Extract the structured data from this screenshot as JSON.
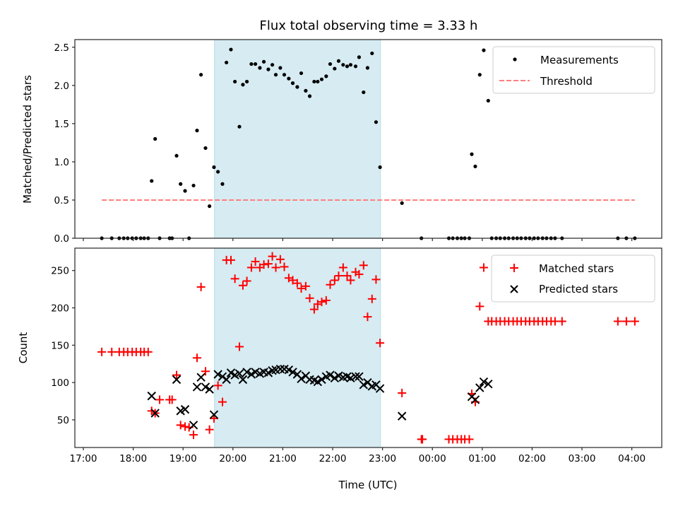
{
  "chart_data": [
    {
      "type": "scatter",
      "title": "Flux total observing time = 3.33 h",
      "xlabel": "",
      "ylabel": "Matched/Predicted stars",
      "ylim": [
        0,
        2.6
      ],
      "xlim_hours": [
        16.83,
        28.6
      ],
      "yticks": [
        "0.0",
        "0.5",
        "1.0",
        "1.5",
        "2.0",
        "2.5"
      ],
      "ytick_values": [
        0,
        0.5,
        1.0,
        1.5,
        2.0,
        2.5
      ],
      "grid": false,
      "legend_position": "top-right",
      "shaded_interval_hours": [
        19.63,
        22.96
      ],
      "shade_color": "#add8e6",
      "series": [
        {
          "name": "Measurements",
          "color": "#000000",
          "marker": "dot",
          "x_hours": [
            17.37,
            17.57,
            17.72,
            17.81,
            17.89,
            17.98,
            18.06,
            18.15,
            18.22,
            18.3,
            18.37,
            18.44,
            18.53,
            18.73,
            18.78,
            18.87,
            18.95,
            19.04,
            19.12,
            19.21,
            19.28,
            19.36,
            19.45,
            19.53,
            19.62,
            19.7,
            19.79,
            19.87,
            19.96,
            20.04,
            20.13,
            20.2,
            20.28,
            20.37,
            20.45,
            20.54,
            20.62,
            20.71,
            20.79,
            20.86,
            20.95,
            21.03,
            21.12,
            21.2,
            21.29,
            21.37,
            21.46,
            21.54,
            21.63,
            21.7,
            21.78,
            21.87,
            21.95,
            22.04,
            22.12,
            22.21,
            22.29,
            22.36,
            22.46,
            22.53,
            22.62,
            22.7,
            22.79,
            22.87,
            22.95,
            23.39,
            23.78,
            24.33,
            24.41,
            24.5,
            24.58,
            24.65,
            24.74,
            24.79,
            24.86,
            24.95,
            25.03,
            25.12,
            25.19,
            25.28,
            25.36,
            25.45,
            25.53,
            25.62,
            25.7,
            25.78,
            25.87,
            25.95,
            26.04,
            26.12,
            26.21,
            26.29,
            26.38,
            26.46,
            26.6,
            27.72,
            27.89,
            28.06
          ],
          "values": [
            0,
            0,
            0,
            0,
            0,
            0,
            0,
            0,
            0,
            0,
            0.75,
            1.3,
            0,
            0,
            0,
            1.08,
            0.71,
            0.62,
            0,
            0.69,
            1.41,
            2.14,
            1.18,
            0.42,
            0.93,
            0.87,
            0.71,
            2.3,
            2.47,
            2.05,
            1.46,
            2.01,
            2.05,
            2.28,
            2.28,
            2.23,
            2.31,
            2.21,
            2.27,
            2.14,
            2.23,
            2.14,
            2.09,
            2.03,
            1.98,
            2.16,
            1.93,
            1.86,
            2.05,
            2.05,
            2.08,
            2.12,
            2.28,
            2.22,
            2.32,
            2.27,
            2.25,
            2.27,
            2.25,
            2.37,
            1.91,
            2.23,
            2.42,
            1.52,
            0.93,
            0.46,
            0,
            0,
            0,
            0,
            0,
            0,
            0,
            1.1,
            0.94,
            2.14,
            2.46,
            1.8,
            0,
            0,
            0,
            0,
            0,
            0,
            0,
            0,
            0,
            0,
            0,
            0,
            0,
            0,
            0,
            0,
            0,
            0,
            0,
            0
          ]
        },
        {
          "name": "Threshold",
          "color": "#ff7f7f",
          "style": "dashed",
          "x_hours": [
            17.37,
            28.06
          ],
          "values": [
            0.5,
            0.5
          ]
        }
      ]
    },
    {
      "type": "scatter",
      "title": "",
      "xlabel": "Time (UTC)",
      "ylabel": "Count",
      "ylim": [
        13,
        280
      ],
      "xlim_hours": [
        16.83,
        28.6
      ],
      "yticks": [
        "50",
        "100",
        "150",
        "200",
        "250"
      ],
      "ytick_values": [
        50,
        100,
        150,
        200,
        250
      ],
      "xticks": [
        "17:00",
        "18:00",
        "19:00",
        "20:00",
        "21:00",
        "22:00",
        "23:00",
        "00:00",
        "01:00",
        "02:00",
        "03:00",
        "04:00"
      ],
      "xtick_hours": [
        17,
        18,
        19,
        20,
        21,
        22,
        23,
        24,
        25,
        26,
        27,
        28
      ],
      "grid": false,
      "legend_position": "top-right",
      "shaded_interval_hours": [
        19.63,
        22.96
      ],
      "shade_color": "#add8e6",
      "series": [
        {
          "name": "Matched stars",
          "color": "#ff0000",
          "marker": "plus",
          "x_hours": [
            17.37,
            17.57,
            17.72,
            17.81,
            17.89,
            17.98,
            18.06,
            18.15,
            18.22,
            18.3,
            18.37,
            18.44,
            18.53,
            18.73,
            18.78,
            18.87,
            18.95,
            19.04,
            19.12,
            19.21,
            19.28,
            19.36,
            19.45,
            19.53,
            19.62,
            19.7,
            19.79,
            19.87,
            19.96,
            20.04,
            20.13,
            20.2,
            20.28,
            20.37,
            20.45,
            20.54,
            20.62,
            20.71,
            20.79,
            20.86,
            20.95,
            21.03,
            21.12,
            21.2,
            21.29,
            21.37,
            21.46,
            21.54,
            21.63,
            21.7,
            21.78,
            21.87,
            21.95,
            22.04,
            22.12,
            22.21,
            22.29,
            22.36,
            22.46,
            22.53,
            22.62,
            22.7,
            22.79,
            22.87,
            22.95,
            23.39,
            23.78,
            23.8,
            24.33,
            24.41,
            24.5,
            24.58,
            24.65,
            24.74,
            24.79,
            24.86,
            24.95,
            25.03,
            25.12,
            25.19,
            25.28,
            25.36,
            25.45,
            25.53,
            25.62,
            25.7,
            25.78,
            25.87,
            25.95,
            26.04,
            26.12,
            26.21,
            26.29,
            26.38,
            26.46,
            26.6,
            27.72,
            27.89,
            28.06
          ],
          "values": [
            141,
            141,
            141,
            141,
            141,
            141,
            141,
            141,
            141,
            141,
            62,
            59,
            77,
            77,
            77,
            110,
            43,
            41,
            40,
            30,
            133,
            228,
            115,
            37,
            52,
            96,
            74,
            264,
            264,
            239,
            148,
            230,
            236,
            254,
            262,
            254,
            258,
            259,
            269,
            254,
            265,
            255,
            240,
            237,
            233,
            226,
            229,
            213,
            198,
            205,
            208,
            210,
            231,
            237,
            243,
            254,
            243,
            237,
            248,
            245,
            257,
            188,
            212,
            238,
            153,
            86,
            24,
            24,
            24,
            24,
            24,
            24,
            24,
            24,
            85,
            74,
            202,
            254,
            182,
            182,
            182,
            182,
            182,
            182,
            182,
            182,
            182,
            182,
            182,
            182,
            182,
            182,
            182,
            182,
            182,
            182,
            182,
            182,
            182,
            182
          ]
        },
        {
          "name": "Predicted stars",
          "color": "#000000",
          "marker": "x",
          "x_hours": [
            18.37,
            18.44,
            18.87,
            18.95,
            19.04,
            19.21,
            19.28,
            19.36,
            19.45,
            19.53,
            19.62,
            19.7,
            19.79,
            19.87,
            19.96,
            20.04,
            20.13,
            20.2,
            20.28,
            20.37,
            20.45,
            20.54,
            20.62,
            20.71,
            20.79,
            20.86,
            20.95,
            21.03,
            21.12,
            21.2,
            21.29,
            21.37,
            21.46,
            21.54,
            21.63,
            21.7,
            21.78,
            21.87,
            21.95,
            22.04,
            22.12,
            22.21,
            22.29,
            22.36,
            22.46,
            22.53,
            22.62,
            22.7,
            22.79,
            22.87,
            22.95,
            23.39,
            24.79,
            24.86,
            24.95,
            25.03,
            25.12
          ],
          "values": [
            82,
            59,
            104,
            62,
            64,
            43,
            94,
            107,
            94,
            91,
            57,
            111,
            108,
            104,
            113,
            110,
            112,
            104,
            114,
            111,
            114,
            112,
            114,
            113,
            116,
            117,
            118,
            118,
            117,
            114,
            111,
            105,
            109,
            104,
            103,
            101,
            104,
            108,
            110,
            106,
            109,
            107,
            108,
            106,
            108,
            108,
            97,
            100,
            95,
            97,
            92,
            55,
            81,
            77,
            93,
            101,
            98
          ]
        }
      ]
    }
  ],
  "legend_top": {
    "items": [
      "Measurements",
      "Threshold"
    ]
  },
  "legend_bottom": {
    "items": [
      "Matched stars",
      "Predicted stars"
    ]
  }
}
